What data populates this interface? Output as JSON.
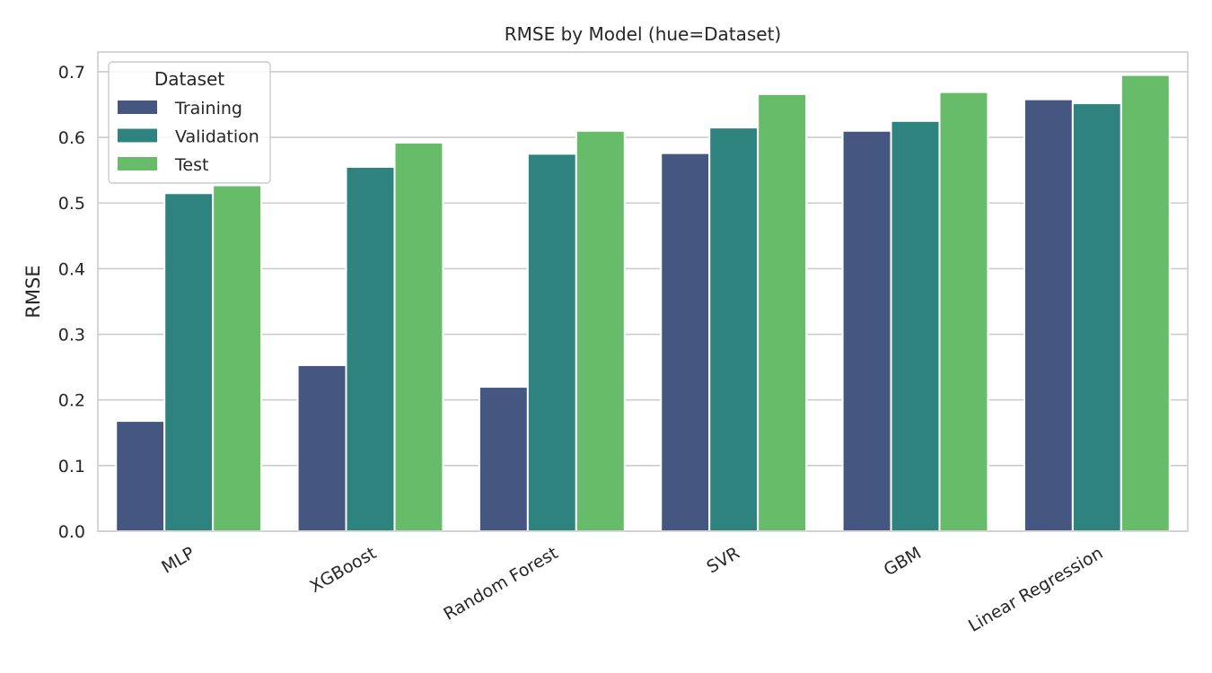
{
  "chart_data": {
    "type": "bar",
    "title": "RMSE by Model (hue=Dataset)",
    "xlabel": "",
    "ylabel": "RMSE",
    "categories": [
      "MLP",
      "XGBoost",
      "Random Forest",
      "SVR",
      "GBM",
      "Linear Regression"
    ],
    "series": [
      {
        "name": "Training",
        "color": "#455681",
        "values": [
          0.168,
          0.253,
          0.22,
          0.576,
          0.61,
          0.658
        ]
      },
      {
        "name": "Validation",
        "color": "#2e837f",
        "values": [
          0.515,
          0.555,
          0.575,
          0.615,
          0.625,
          0.652
        ]
      },
      {
        "name": "Test",
        "color": "#67bc6a",
        "values": [
          0.527,
          0.592,
          0.61,
          0.666,
          0.669,
          0.695
        ]
      }
    ],
    "ylim": [
      0,
      0.73
    ],
    "yticks": [
      0.0,
      0.1,
      0.2,
      0.3,
      0.4,
      0.5,
      0.6,
      0.7
    ],
    "grid": true,
    "legend": {
      "title": "Dataset",
      "placement": "top-left"
    }
  }
}
